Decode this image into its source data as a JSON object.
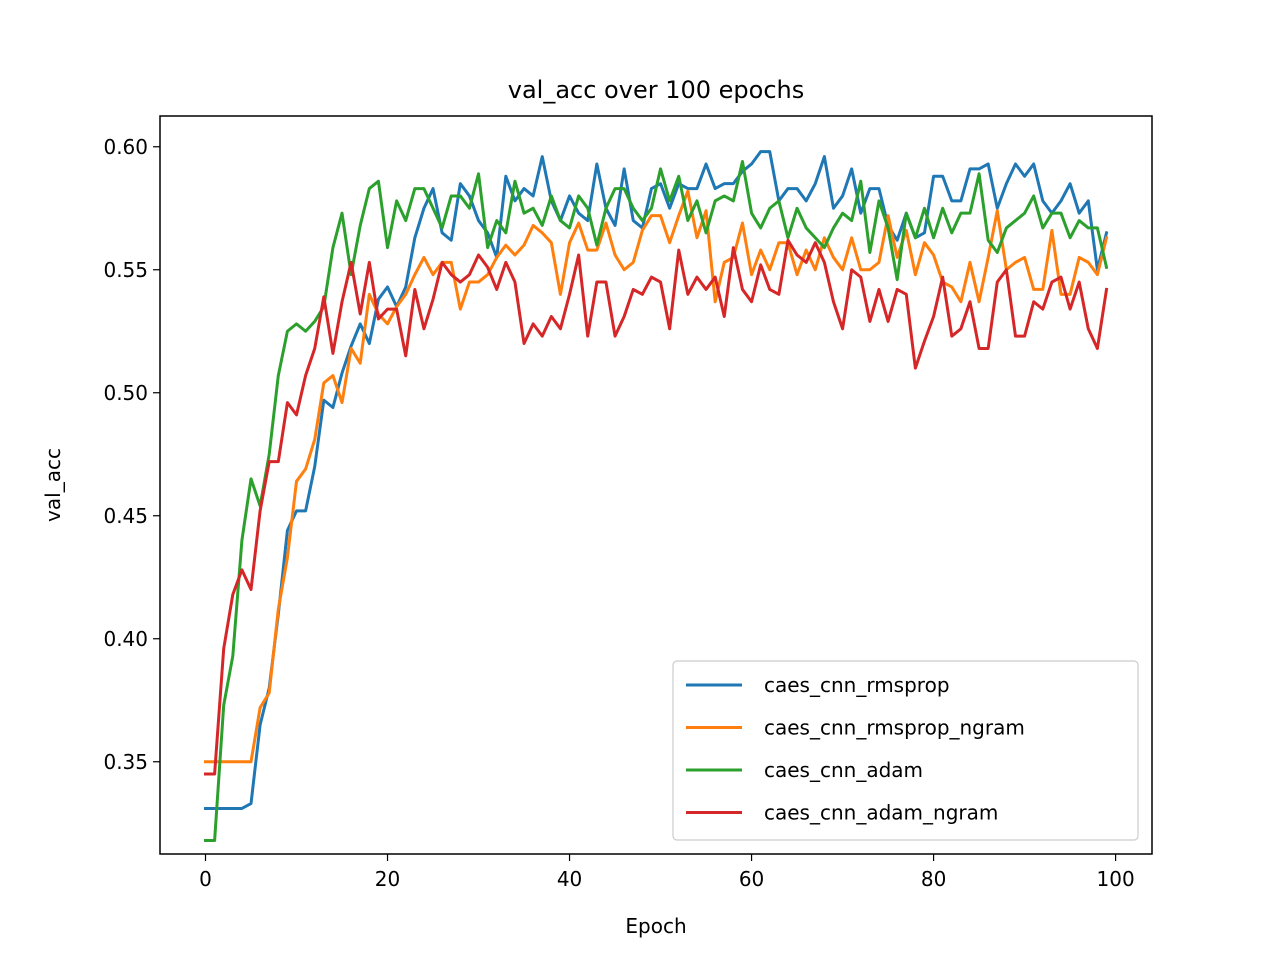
{
  "chart_data": {
    "type": "line",
    "title": "val_acc over 100 epochs",
    "xlabel": "Epoch",
    "ylabel": "val_acc",
    "xlim": [
      -5,
      104
    ],
    "ylim": [
      0.3125,
      0.6125
    ],
    "xticks": [
      0,
      20,
      40,
      60,
      80,
      100
    ],
    "yticks": [
      0.35,
      0.4,
      0.45,
      0.5,
      0.55,
      0.6
    ],
    "xtick_labels": [
      "0",
      "20",
      "40",
      "60",
      "80",
      "100"
    ],
    "ytick_labels": [
      "0.35",
      "0.40",
      "0.45",
      "0.50",
      "0.55",
      "0.60"
    ],
    "grid": false,
    "legend_position": "lower-right",
    "series": [
      {
        "name": "caes_cnn_rmsprop",
        "color": "#1f77b4",
        "values": [
          0.331,
          0.331,
          0.331,
          0.331,
          0.331,
          0.333,
          0.365,
          0.38,
          0.41,
          0.444,
          0.452,
          0.452,
          0.47,
          0.497,
          0.494,
          0.508,
          0.519,
          0.528,
          0.52,
          0.538,
          0.543,
          0.535,
          0.543,
          0.563,
          0.575,
          0.583,
          0.565,
          0.562,
          0.585,
          0.58,
          0.57,
          0.565,
          0.555,
          0.588,
          0.578,
          0.583,
          0.58,
          0.596,
          0.578,
          0.57,
          0.58,
          0.573,
          0.57,
          0.593,
          0.575,
          0.568,
          0.591,
          0.57,
          0.567,
          0.583,
          0.585,
          0.575,
          0.585,
          0.583,
          0.583,
          0.593,
          0.583,
          0.585,
          0.585,
          0.59,
          0.593,
          0.598,
          0.598,
          0.578,
          0.583,
          0.583,
          0.578,
          0.585,
          0.596,
          0.575,
          0.58,
          0.591,
          0.573,
          0.583,
          0.583,
          0.568,
          0.562,
          0.573,
          0.563,
          0.565,
          0.588,
          0.588,
          0.578,
          0.578,
          0.591,
          0.591,
          0.593,
          0.575,
          0.585,
          0.593,
          0.588,
          0.593,
          0.578,
          0.573,
          0.578,
          0.585,
          0.573,
          0.578,
          0.55,
          0.565
        ]
      },
      {
        "name": "caes_cnn_rmsprop_ngram",
        "color": "#ff7f0e",
        "values": [
          0.35,
          0.35,
          0.35,
          0.35,
          0.35,
          0.35,
          0.372,
          0.378,
          0.412,
          0.433,
          0.464,
          0.469,
          0.481,
          0.504,
          0.507,
          0.496,
          0.518,
          0.512,
          0.54,
          0.532,
          0.528,
          0.535,
          0.54,
          0.548,
          0.555,
          0.548,
          0.553,
          0.553,
          0.534,
          0.545,
          0.545,
          0.548,
          0.555,
          0.56,
          0.556,
          0.56,
          0.568,
          0.565,
          0.561,
          0.54,
          0.561,
          0.569,
          0.558,
          0.558,
          0.569,
          0.556,
          0.55,
          0.553,
          0.566,
          0.572,
          0.572,
          0.561,
          0.572,
          0.582,
          0.563,
          0.574,
          0.537,
          0.553,
          0.555,
          0.569,
          0.548,
          0.558,
          0.55,
          0.561,
          0.561,
          0.548,
          0.558,
          0.55,
          0.563,
          0.555,
          0.55,
          0.563,
          0.55,
          0.55,
          0.553,
          0.572,
          0.555,
          0.566,
          0.548,
          0.561,
          0.556,
          0.545,
          0.543,
          0.537,
          0.553,
          0.537,
          0.555,
          0.574,
          0.55,
          0.553,
          0.555,
          0.542,
          0.542,
          0.566,
          0.54,
          0.54,
          0.555,
          0.553,
          0.548,
          0.563
        ]
      },
      {
        "name": "caes_cnn_adam",
        "color": "#2ca02c",
        "values": [
          0.318,
          0.318,
          0.373,
          0.393,
          0.44,
          0.465,
          0.454,
          0.475,
          0.507,
          0.525,
          0.528,
          0.525,
          0.529,
          0.535,
          0.559,
          0.573,
          0.548,
          0.568,
          0.583,
          0.586,
          0.559,
          0.578,
          0.57,
          0.583,
          0.583,
          0.575,
          0.567,
          0.58,
          0.58,
          0.575,
          0.589,
          0.559,
          0.57,
          0.565,
          0.586,
          0.573,
          0.575,
          0.568,
          0.58,
          0.57,
          0.567,
          0.58,
          0.575,
          0.56,
          0.575,
          0.583,
          0.583,
          0.575,
          0.57,
          0.575,
          0.591,
          0.578,
          0.588,
          0.57,
          0.578,
          0.565,
          0.578,
          0.58,
          0.578,
          0.594,
          0.573,
          0.567,
          0.575,
          0.578,
          0.563,
          0.575,
          0.567,
          0.563,
          0.559,
          0.567,
          0.573,
          0.57,
          0.586,
          0.557,
          0.578,
          0.567,
          0.546,
          0.573,
          0.563,
          0.575,
          0.563,
          0.575,
          0.565,
          0.573,
          0.573,
          0.589,
          0.562,
          0.557,
          0.567,
          0.57,
          0.573,
          0.58,
          0.567,
          0.573,
          0.573,
          0.563,
          0.57,
          0.567,
          0.567,
          0.551
        ]
      },
      {
        "name": "caes_cnn_adam_ngram",
        "color": "#d62728",
        "values": [
          0.345,
          0.345,
          0.396,
          0.418,
          0.428,
          0.42,
          0.452,
          0.472,
          0.472,
          0.496,
          0.491,
          0.507,
          0.518,
          0.539,
          0.516,
          0.537,
          0.553,
          0.532,
          0.553,
          0.53,
          0.534,
          0.534,
          0.515,
          0.542,
          0.526,
          0.538,
          0.553,
          0.548,
          0.545,
          0.548,
          0.556,
          0.551,
          0.542,
          0.553,
          0.545,
          0.52,
          0.528,
          0.523,
          0.531,
          0.526,
          0.54,
          0.556,
          0.523,
          0.545,
          0.545,
          0.523,
          0.531,
          0.542,
          0.54,
          0.547,
          0.545,
          0.526,
          0.558,
          0.54,
          0.547,
          0.542,
          0.547,
          0.531,
          0.559,
          0.542,
          0.537,
          0.552,
          0.542,
          0.54,
          0.562,
          0.556,
          0.553,
          0.561,
          0.553,
          0.537,
          0.526,
          0.55,
          0.547,
          0.529,
          0.542,
          0.529,
          0.542,
          0.54,
          0.51,
          0.521,
          0.531,
          0.547,
          0.523,
          0.526,
          0.537,
          0.518,
          0.518,
          0.545,
          0.55,
          0.523,
          0.523,
          0.537,
          0.534,
          0.545,
          0.547,
          0.534,
          0.545,
          0.526,
          0.518,
          0.542
        ]
      }
    ]
  }
}
